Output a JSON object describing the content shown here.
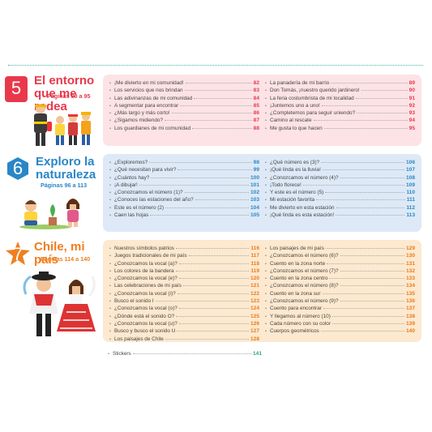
{
  "units": [
    {
      "number": "5",
      "title_line1": "El entorno",
      "title_line2": "que me rodea",
      "pages": "Páginas 80 a 95",
      "color": "#e8394b",
      "box_color": "#fde3e6",
      "pg_color": "#e8394b",
      "left": [
        {
          "t": "¡Me divierto en mi comunidad!",
          "p": "82"
        },
        {
          "t": "Los servicios que nos brindan",
          "p": "83"
        },
        {
          "t": "Las adivinanzas de mi comunidad",
          "p": "84"
        },
        {
          "t": "A segmentar para encontrar",
          "p": "85"
        },
        {
          "t": "¿Más largo y más corto!",
          "p": "86"
        },
        {
          "t": "¿Sigamos midiendo?",
          "p": "87"
        },
        {
          "t": "Los guardianes de mi comunidad",
          "p": "88"
        }
      ],
      "right": [
        {
          "t": "La panadería de mi barrio",
          "p": "89"
        },
        {
          "t": "Don Tomás, ¡nuestro querido jardinero!",
          "p": "90"
        },
        {
          "t": "La feria costumbrista de mi localidad",
          "p": "91"
        },
        {
          "t": "¡Juntemos uno a uno!",
          "p": "92"
        },
        {
          "t": "¿Completemos para seguir uniendo?",
          "p": "93"
        },
        {
          "t": "Camino al rescate",
          "p": "94"
        },
        {
          "t": "Me gusta lo que hacen",
          "p": "95"
        }
      ]
    },
    {
      "number": "6",
      "title_line1": "Exploro la",
      "title_line2": "naturaleza",
      "pages": "Páginas 96 a 113",
      "color": "#2a86c7",
      "box_color": "#dde9f6",
      "pg_color": "#2a86c7",
      "left": [
        {
          "t": "¿Exploremos?",
          "p": "98"
        },
        {
          "t": "¿Qué necesitan para vivir?",
          "p": "99"
        },
        {
          "t": "¿Cuántos hay?",
          "p": "100"
        },
        {
          "t": "¡A dibujar!",
          "p": "101"
        },
        {
          "t": "¿Conozcamos el número (1)?",
          "p": "102"
        },
        {
          "t": "¿Conoces las estaciones del año?",
          "p": "103"
        },
        {
          "t": "Este es el número (2)",
          "p": "104"
        },
        {
          "t": "Caen las hojas",
          "p": "105"
        }
      ],
      "right": [
        {
          "t": "¿Qué número es (3)?",
          "p": "106"
        },
        {
          "t": "¡Qué linda es la lluvia!",
          "p": "107"
        },
        {
          "t": "¿Conozcamos el número (4)?",
          "p": "108"
        },
        {
          "t": "¡Todo florece!",
          "p": "109"
        },
        {
          "t": "Y este es el número (5)",
          "p": "110"
        },
        {
          "t": "Mi estación favorita",
          "p": "111"
        },
        {
          "t": "Me divierto en esta estación",
          "p": "112"
        },
        {
          "t": "¡Qué linda es esta estación!",
          "p": "113"
        }
      ]
    },
    {
      "number": "7",
      "title_line1": "Chile, mi país",
      "title_line2": "",
      "pages": "Páginas 114 a 140",
      "color": "#f07f1f",
      "box_color": "#fde9cf",
      "pg_color": "#e87a1e",
      "left": [
        {
          "t": "Nuestros símbolos patrios",
          "p": "116"
        },
        {
          "t": "Juegos tradicionales de mi país",
          "p": "117"
        },
        {
          "t": "¿Conozcamos la vocal (a)?",
          "p": "118"
        },
        {
          "t": "Los colores de la bandera",
          "p": "119"
        },
        {
          "t": "¿Conozcamos la vocal (e)?",
          "p": "120"
        },
        {
          "t": "Las celebraciones de mi país",
          "p": "121"
        },
        {
          "t": "¿Conozcamos la vocal (i)?",
          "p": "122"
        },
        {
          "t": "Busco el sonido I",
          "p": "123"
        },
        {
          "t": "¿Conozcamos la vocal (o)?",
          "p": "124"
        },
        {
          "t": "¿Dónde está el sonido O?",
          "p": "125"
        },
        {
          "t": "¿Conozcamos la vocal (u)?",
          "p": "126"
        },
        {
          "t": "Busco y busco el sonido U",
          "p": "127"
        },
        {
          "t": "Los paisajes de Chile",
          "p": "128"
        }
      ],
      "right": [
        {
          "t": "Los paisajes de mi país",
          "p": "129"
        },
        {
          "t": "¿Conozcamos el número (6)?",
          "p": "130"
        },
        {
          "t": "Cuento en la zona norte",
          "p": "131"
        },
        {
          "t": "¿Conozcamos el número (7)?",
          "p": "132"
        },
        {
          "t": "Cuento en la zona centro",
          "p": "133"
        },
        {
          "t": "¿Conozcamos el número (8)?",
          "p": "134"
        },
        {
          "t": "Cuento en la zona sur",
          "p": "135"
        },
        {
          "t": "¿Conozcamos el número (9)?",
          "p": "136"
        },
        {
          "t": "Cuento para encontrar",
          "p": "137"
        },
        {
          "t": "Y llegamos al número (10)",
          "p": "138"
        },
        {
          "t": "Cada número con su color",
          "p": "139"
        },
        {
          "t": "Cuerpos geométricos",
          "p": "140"
        }
      ]
    }
  ],
  "stickers": {
    "label": "Stickers",
    "page": "141",
    "color": "#2aa86e"
  }
}
